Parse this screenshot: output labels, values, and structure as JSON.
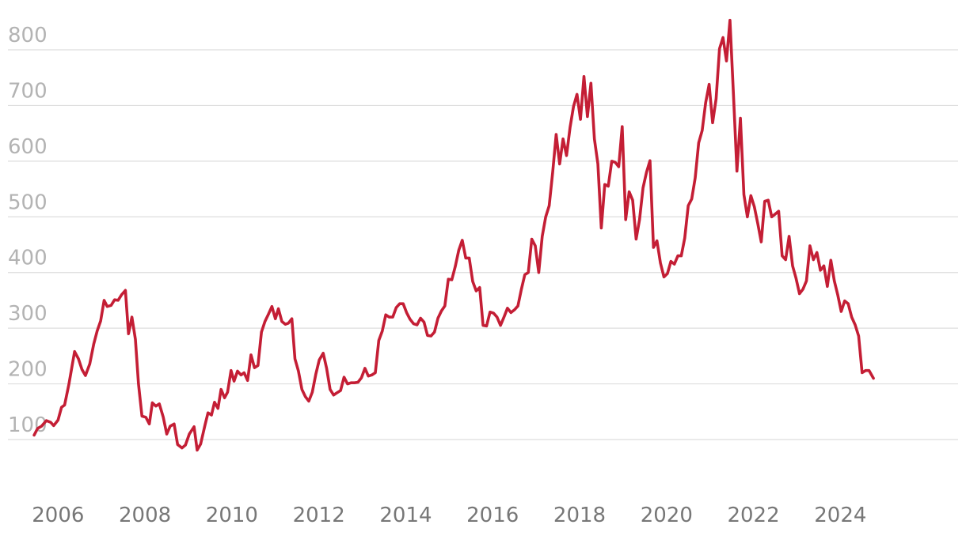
{
  "chart_data": {
    "type": "line",
    "title": "",
    "xlabel": "",
    "ylabel": "",
    "ylim": [
      0,
      850
    ],
    "xlim": [
      2005.0,
      2026.0
    ],
    "grid": true,
    "legend": "none",
    "y_ticks": [
      "100",
      "200",
      "300",
      "400",
      "500",
      "600",
      "700",
      "800"
    ],
    "x_ticks": [
      "2006",
      "2008",
      "2010",
      "2012",
      "2014",
      "2016",
      "2018",
      "2020",
      "2022",
      "2024"
    ],
    "colors": {
      "line": "#c41e35",
      "grid": "#dddddd",
      "ytick": "#b3b3b3",
      "xtick": "#777777"
    },
    "series": [
      {
        "values": [
          [
            2005.45,
            108
          ],
          [
            2005.53,
            120
          ],
          [
            2005.62,
            124
          ],
          [
            2005.73,
            134
          ],
          [
            2005.83,
            131
          ],
          [
            2005.9,
            125
          ],
          [
            2006.0,
            135
          ],
          [
            2006.08,
            158
          ],
          [
            2006.15,
            162
          ],
          [
            2006.25,
            200
          ],
          [
            2006.38,
            258
          ],
          [
            2006.47,
            245
          ],
          [
            2006.55,
            226
          ],
          [
            2006.63,
            215
          ],
          [
            2006.73,
            236
          ],
          [
            2006.82,
            271
          ],
          [
            2006.9,
            295
          ],
          [
            2006.98,
            313
          ],
          [
            2007.06,
            350
          ],
          [
            2007.13,
            339
          ],
          [
            2007.22,
            341
          ],
          [
            2007.3,
            351
          ],
          [
            2007.38,
            350
          ],
          [
            2007.46,
            360
          ],
          [
            2007.55,
            368
          ],
          [
            2007.62,
            290
          ],
          [
            2007.7,
            320
          ],
          [
            2007.78,
            280
          ],
          [
            2007.85,
            200
          ],
          [
            2007.93,
            142
          ],
          [
            2008.02,
            140
          ],
          [
            2008.1,
            128
          ],
          [
            2008.17,
            166
          ],
          [
            2008.25,
            160
          ],
          [
            2008.33,
            164
          ],
          [
            2008.42,
            140
          ],
          [
            2008.5,
            110
          ],
          [
            2008.58,
            124
          ],
          [
            2008.67,
            128
          ],
          [
            2008.75,
            91
          ],
          [
            2008.85,
            85
          ],
          [
            2008.93,
            90
          ],
          [
            2009.02,
            110
          ],
          [
            2009.13,
            123
          ],
          [
            2009.2,
            81
          ],
          [
            2009.28,
            92
          ],
          [
            2009.38,
            126
          ],
          [
            2009.45,
            148
          ],
          [
            2009.53,
            144
          ],
          [
            2009.6,
            167
          ],
          [
            2009.68,
            156
          ],
          [
            2009.75,
            190
          ],
          [
            2009.83,
            175
          ],
          [
            2009.9,
            185
          ],
          [
            2009.98,
            224
          ],
          [
            2010.05,
            205
          ],
          [
            2010.13,
            223
          ],
          [
            2010.21,
            216
          ],
          [
            2010.28,
            220
          ],
          [
            2010.36,
            206
          ],
          [
            2010.44,
            252
          ],
          [
            2010.52,
            229
          ],
          [
            2010.6,
            233
          ],
          [
            2010.68,
            293
          ],
          [
            2010.76,
            312
          ],
          [
            2010.84,
            325
          ],
          [
            2010.92,
            339
          ],
          [
            2011.0,
            317
          ],
          [
            2011.07,
            335
          ],
          [
            2011.15,
            312
          ],
          [
            2011.23,
            307
          ],
          [
            2011.3,
            309
          ],
          [
            2011.38,
            317
          ],
          [
            2011.45,
            245
          ],
          [
            2011.53,
            223
          ],
          [
            2011.61,
            190
          ],
          [
            2011.69,
            177
          ],
          [
            2011.77,
            169
          ],
          [
            2011.85,
            185
          ],
          [
            2011.93,
            217
          ],
          [
            2012.01,
            243
          ],
          [
            2012.1,
            255
          ],
          [
            2012.18,
            228
          ],
          [
            2012.26,
            190
          ],
          [
            2012.34,
            180
          ],
          [
            2012.42,
            184
          ],
          [
            2012.5,
            188
          ],
          [
            2012.58,
            212
          ],
          [
            2012.66,
            200
          ],
          [
            2012.74,
            202
          ],
          [
            2012.82,
            202
          ],
          [
            2012.9,
            203
          ],
          [
            2012.98,
            211
          ],
          [
            2013.06,
            228
          ],
          [
            2013.14,
            214
          ],
          [
            2013.22,
            216
          ],
          [
            2013.3,
            220
          ],
          [
            2013.38,
            278
          ],
          [
            2013.46,
            295
          ],
          [
            2013.54,
            324
          ],
          [
            2013.62,
            320
          ],
          [
            2013.7,
            320
          ],
          [
            2013.78,
            337
          ],
          [
            2013.86,
            344
          ],
          [
            2013.94,
            344
          ],
          [
            2014.02,
            328
          ],
          [
            2014.1,
            316
          ],
          [
            2014.18,
            308
          ],
          [
            2014.26,
            306
          ],
          [
            2014.34,
            318
          ],
          [
            2014.42,
            311
          ],
          [
            2014.5,
            287
          ],
          [
            2014.58,
            286
          ],
          [
            2014.66,
            293
          ],
          [
            2014.74,
            318
          ],
          [
            2014.82,
            331
          ],
          [
            2014.9,
            340
          ],
          [
            2014.98,
            388
          ],
          [
            2015.06,
            387
          ],
          [
            2015.14,
            411
          ],
          [
            2015.22,
            440
          ],
          [
            2015.3,
            458
          ],
          [
            2015.38,
            426
          ],
          [
            2015.46,
            426
          ],
          [
            2015.54,
            384
          ],
          [
            2015.62,
            367
          ],
          [
            2015.7,
            373
          ],
          [
            2015.78,
            305
          ],
          [
            2015.86,
            304
          ],
          [
            2015.94,
            329
          ],
          [
            2016.02,
            327
          ],
          [
            2016.1,
            320
          ],
          [
            2016.18,
            305
          ],
          [
            2016.26,
            320
          ],
          [
            2016.34,
            336
          ],
          [
            2016.42,
            328
          ],
          [
            2016.5,
            333
          ],
          [
            2016.58,
            340
          ],
          [
            2016.66,
            370
          ],
          [
            2016.74,
            396
          ],
          [
            2016.82,
            400
          ],
          [
            2016.9,
            460
          ],
          [
            2016.98,
            448
          ],
          [
            2017.06,
            400
          ],
          [
            2017.14,
            465
          ],
          [
            2017.22,
            500
          ],
          [
            2017.3,
            520
          ],
          [
            2017.38,
            580
          ],
          [
            2017.46,
            648
          ],
          [
            2017.54,
            595
          ],
          [
            2017.62,
            640
          ],
          [
            2017.7,
            610
          ],
          [
            2017.78,
            660
          ],
          [
            2017.86,
            698
          ],
          [
            2017.94,
            720
          ],
          [
            2018.02,
            675
          ],
          [
            2018.1,
            752
          ],
          [
            2018.18,
            680
          ],
          [
            2018.26,
            740
          ],
          [
            2018.34,
            640
          ],
          [
            2018.42,
            595
          ],
          [
            2018.5,
            480
          ],
          [
            2018.58,
            558
          ],
          [
            2018.66,
            555
          ],
          [
            2018.74,
            600
          ],
          [
            2018.82,
            598
          ],
          [
            2018.9,
            590
          ],
          [
            2018.98,
            662
          ],
          [
            2019.06,
            495
          ],
          [
            2019.14,
            545
          ],
          [
            2019.22,
            530
          ],
          [
            2019.3,
            460
          ],
          [
            2019.38,
            495
          ],
          [
            2019.46,
            552
          ],
          [
            2019.54,
            580
          ],
          [
            2019.62,
            601
          ],
          [
            2019.7,
            445
          ],
          [
            2019.78,
            457
          ],
          [
            2019.86,
            417
          ],
          [
            2019.94,
            392
          ],
          [
            2020.02,
            398
          ],
          [
            2020.1,
            420
          ],
          [
            2020.18,
            415
          ],
          [
            2020.26,
            430
          ],
          [
            2020.34,
            430
          ],
          [
            2020.42,
            462
          ],
          [
            2020.5,
            520
          ],
          [
            2020.58,
            532
          ],
          [
            2020.66,
            570
          ],
          [
            2020.74,
            633
          ],
          [
            2020.82,
            655
          ],
          [
            2020.9,
            705
          ],
          [
            2020.98,
            738
          ],
          [
            2021.06,
            669
          ],
          [
            2021.14,
            712
          ],
          [
            2021.22,
            802
          ],
          [
            2021.3,
            822
          ],
          [
            2021.38,
            780
          ],
          [
            2021.46,
            853
          ],
          [
            2021.54,
            720
          ],
          [
            2021.62,
            582
          ],
          [
            2021.7,
            677
          ],
          [
            2021.78,
            540
          ],
          [
            2021.86,
            500
          ],
          [
            2021.94,
            538
          ],
          [
            2022.02,
            518
          ],
          [
            2022.1,
            488
          ],
          [
            2022.18,
            455
          ],
          [
            2022.26,
            528
          ],
          [
            2022.34,
            530
          ],
          [
            2022.42,
            500
          ],
          [
            2022.5,
            505
          ],
          [
            2022.58,
            510
          ],
          [
            2022.66,
            430
          ],
          [
            2022.74,
            423
          ],
          [
            2022.82,
            465
          ],
          [
            2022.9,
            412
          ],
          [
            2022.98,
            390
          ],
          [
            2023.06,
            362
          ],
          [
            2023.14,
            370
          ],
          [
            2023.22,
            385
          ],
          [
            2023.3,
            448
          ],
          [
            2023.38,
            423
          ],
          [
            2023.46,
            436
          ],
          [
            2023.54,
            404
          ],
          [
            2023.62,
            412
          ],
          [
            2023.7,
            375
          ],
          [
            2023.78,
            422
          ],
          [
            2023.86,
            385
          ],
          [
            2023.94,
            360
          ],
          [
            2024.02,
            330
          ],
          [
            2024.1,
            349
          ],
          [
            2024.18,
            344
          ],
          [
            2024.26,
            320
          ],
          [
            2024.34,
            306
          ],
          [
            2024.42,
            286
          ],
          [
            2024.5,
            220
          ],
          [
            2024.58,
            224
          ],
          [
            2024.66,
            224
          ],
          [
            2024.76,
            210
          ]
        ]
      }
    ]
  }
}
